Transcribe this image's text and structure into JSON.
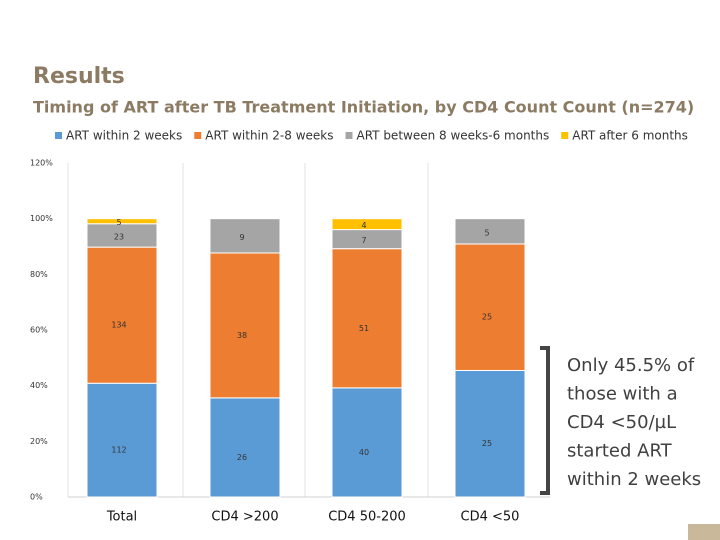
{
  "chart_data": {
    "type": "bar",
    "stacking": "percent",
    "title": "Results",
    "subtitle": "Timing of ART after TB Treatment Initiation, by CD4 Count Count (n=274)",
    "categories": [
      "Total",
      "CD4 >200",
      "CD4 50-200",
      "CD4 <50"
    ],
    "series": [
      {
        "name": "ART within 2 weeks",
        "color": "#5b9bd5",
        "values": [
          112,
          26,
          40,
          25
        ]
      },
      {
        "name": "ART within 2-8 weeks",
        "color": "#ed7d31",
        "values": [
          134,
          38,
          51,
          25
        ]
      },
      {
        "name": "ART between 8 weeks-6 months",
        "color": "#a5a5a5",
        "values": [
          23,
          9,
          7,
          5
        ]
      },
      {
        "name": "ART after 6 months",
        "color": "#ffc000",
        "values": [
          5,
          null,
          4,
          null
        ]
      }
    ],
    "ylim": [
      0,
      120
    ],
    "yticks": [
      {
        "value": 0,
        "label": "0%"
      },
      {
        "value": 20,
        "label": "20%"
      },
      {
        "value": 40,
        "label": "40%"
      },
      {
        "value": 60,
        "label": "60%"
      },
      {
        "value": 80,
        "label": "80%"
      },
      {
        "value": 100,
        "label": "100%"
      },
      {
        "value": 120,
        "label": "120%"
      }
    ],
    "grid": false,
    "legend": "top",
    "annotation": [
      "Only 45.5% of",
      "those with a",
      "CD4 <50/µL",
      "started ART",
      "within 2 weeks"
    ]
  }
}
